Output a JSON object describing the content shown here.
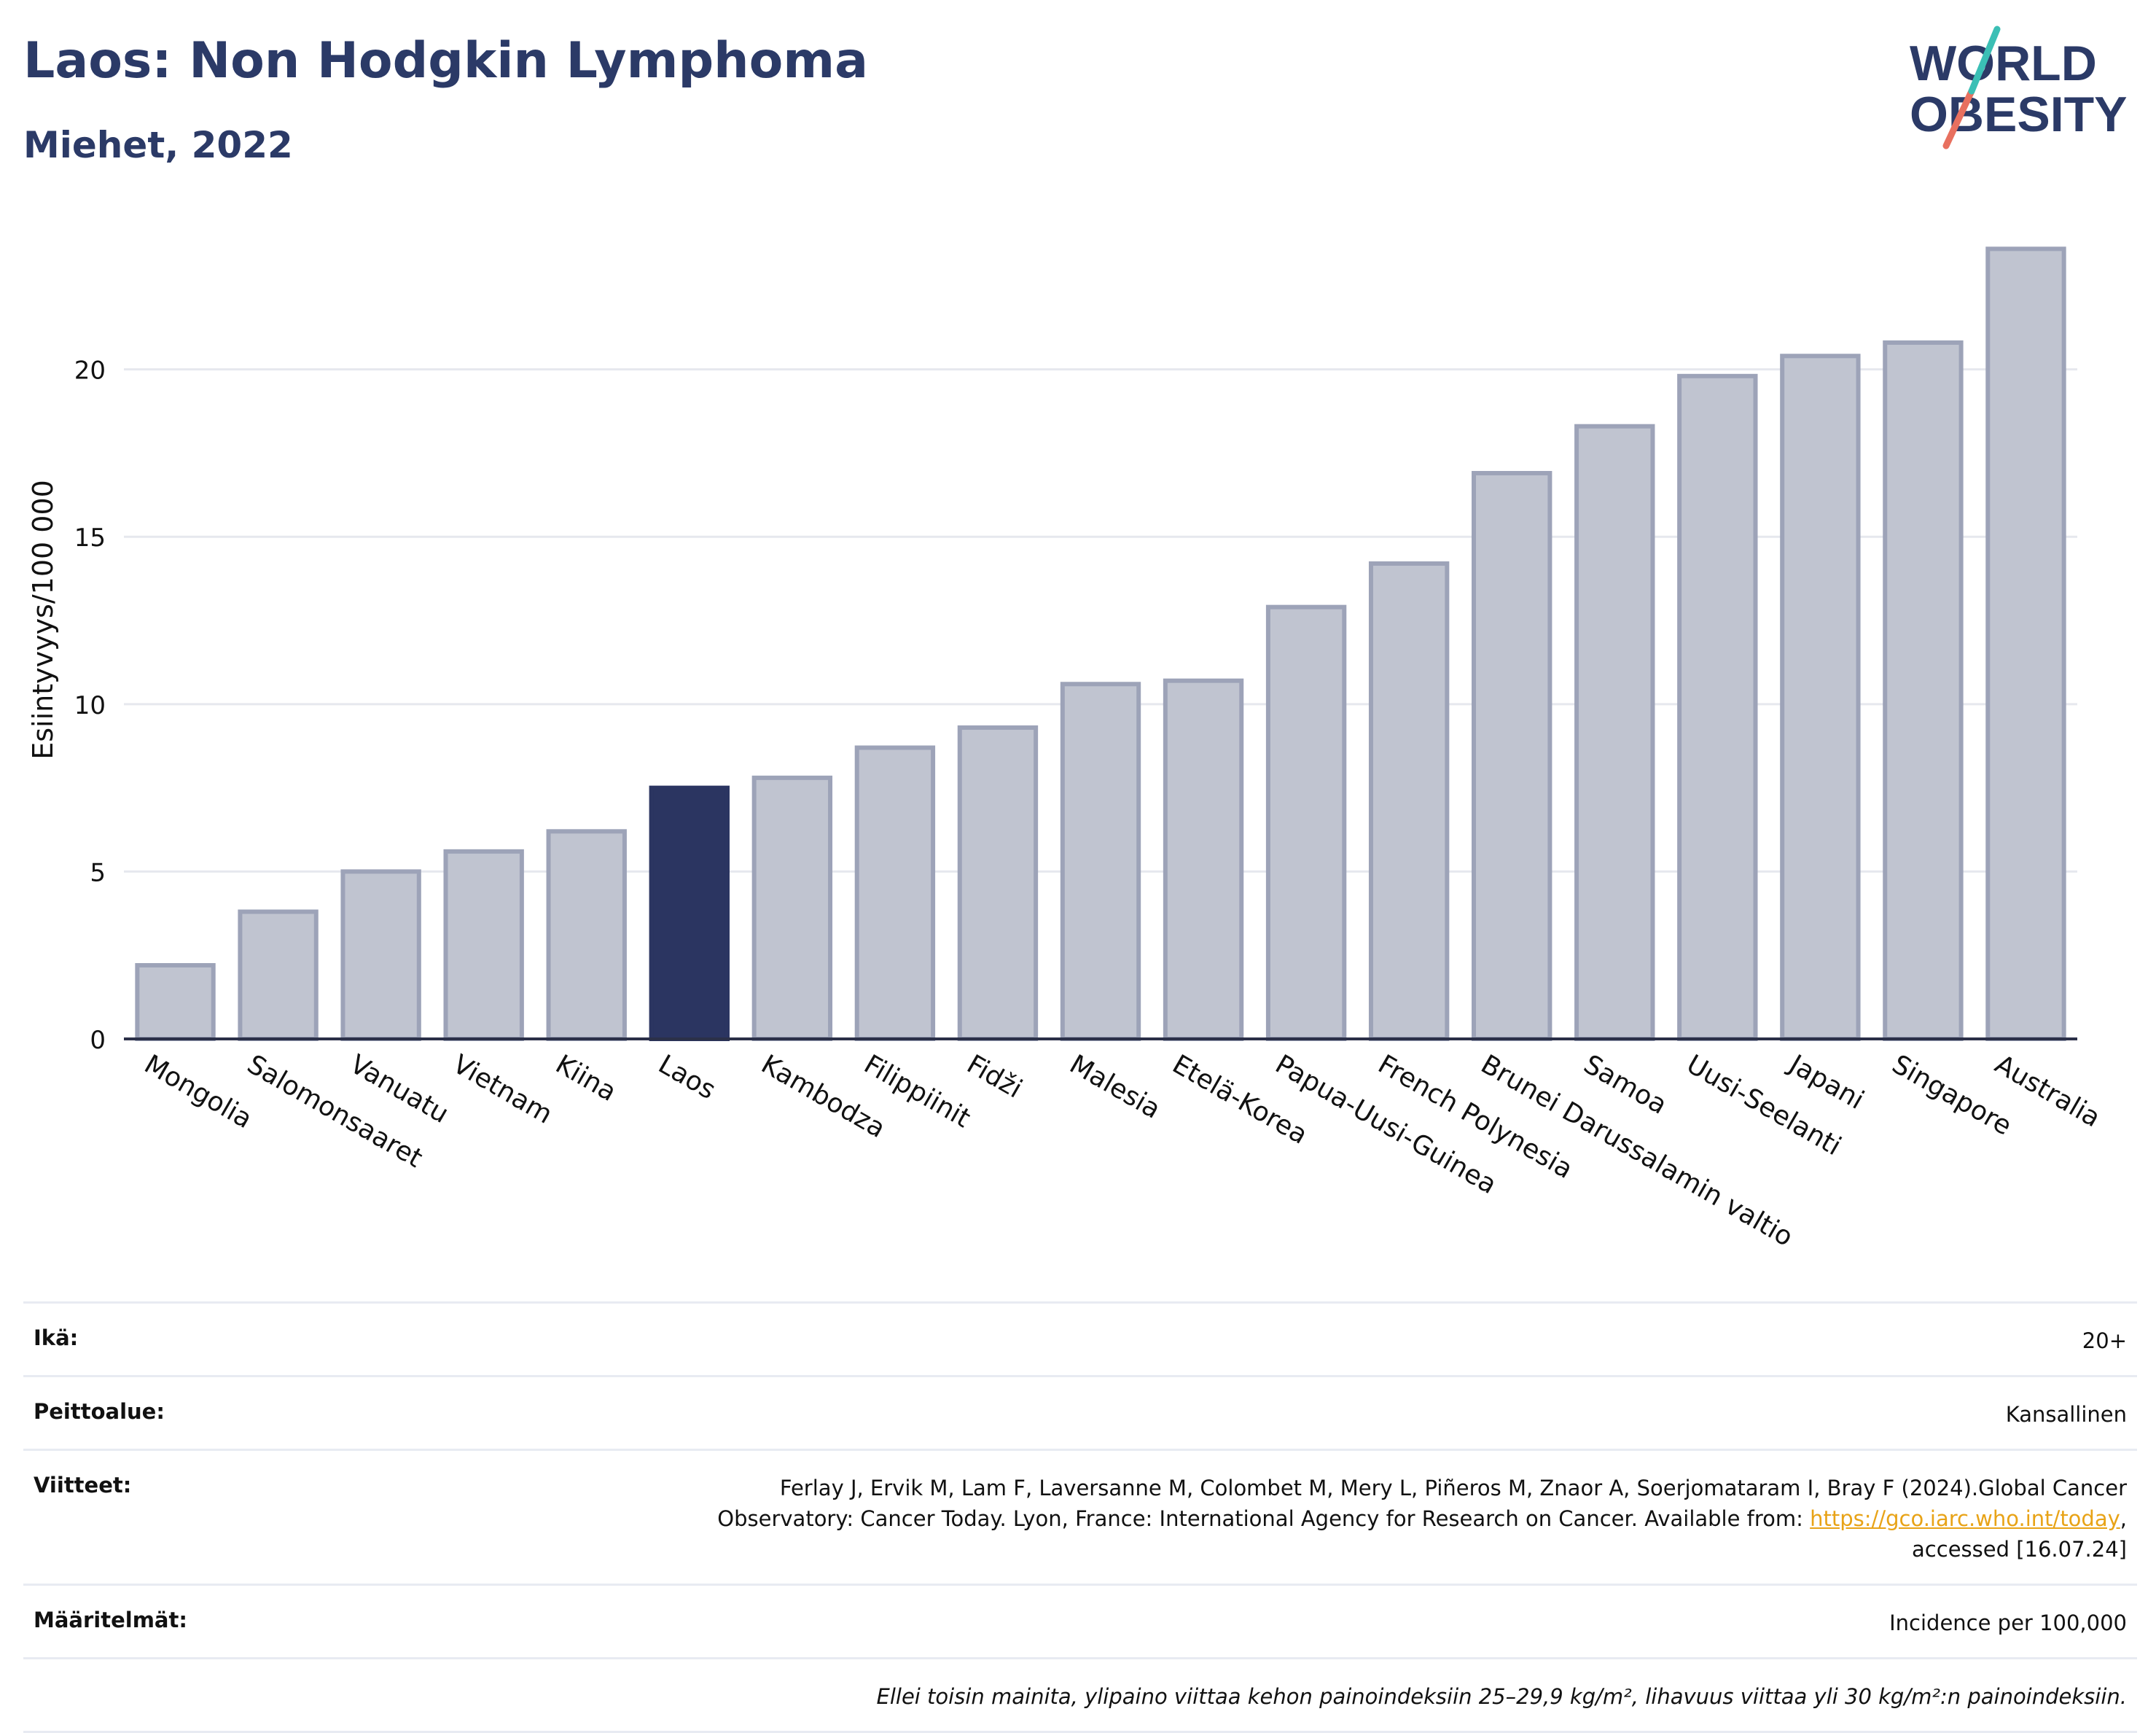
{
  "header": {
    "title": "Laos: Non Hodgkin Lymphoma",
    "subtitle": "Miehet, 2022"
  },
  "logo": {
    "line1": "WORLD",
    "line2": "OBESITY",
    "name": "world-obesity-logo"
  },
  "colors": {
    "highlight": "#2b3561",
    "bar": "#c0c4d0",
    "bar_edge": "#9da3b8",
    "title": "#2b3a67",
    "link": "#e8a317"
  },
  "chart_data": {
    "type": "bar",
    "ylabel": "Esiintyvyys/100 000",
    "xlabel": "",
    "ylim": [
      0,
      24.5
    ],
    "yticks": [
      0,
      5,
      10,
      15,
      20
    ],
    "grid": true,
    "highlight": "Laos",
    "categories": [
      "Mongolia",
      "Salomonsaaret",
      "Vanuatu",
      "Vietnam",
      "Kiina",
      "Laos",
      "Kambodza",
      "Filippiinit",
      "Fidži",
      "Malesia",
      "Etelä-Korea",
      "Papua-Uusi-Guinea",
      "French Polynesia",
      "Brunei Darussalamin valtio",
      "Samoa",
      "Uusi-Seelanti",
      "Japani",
      "Singapore",
      "Australia"
    ],
    "values": [
      2.2,
      3.8,
      5.0,
      5.6,
      6.2,
      7.5,
      7.8,
      8.7,
      9.3,
      10.6,
      10.7,
      12.9,
      14.2,
      16.9,
      18.3,
      19.8,
      20.4,
      20.8,
      23.6
    ]
  },
  "info": {
    "age_label": "Ikä:",
    "age_value": "20+",
    "coverage_label": "Peittoalue:",
    "coverage_value": "Kansallinen",
    "refs_label": "Viitteet:",
    "refs_line1": "Ferlay J, Ervik M, Lam F, Laversanne M, Colombet M, Mery L, Piñeros M, Znaor A, Soerjomataram I, Bray F (2024).Global Cancer",
    "refs_line2": "Observatory: Cancer Today. Lyon, France: International Agency for Research on Cancer. Available from: ",
    "refs_link": "https://gco.iarc.who.int/today",
    "refs_line2_end": ",",
    "refs_line3": "accessed [16.07.24]",
    "defs_label": "Määritelmät:",
    "defs_value": "Incidence per 100,000",
    "note": "Ellei toisin mainita, ylipaino viittaa kehon painoindeksiin 25–29,9 kg/m², lihavuus viittaa yli 30 kg/m²:n painoindeksiin."
  }
}
